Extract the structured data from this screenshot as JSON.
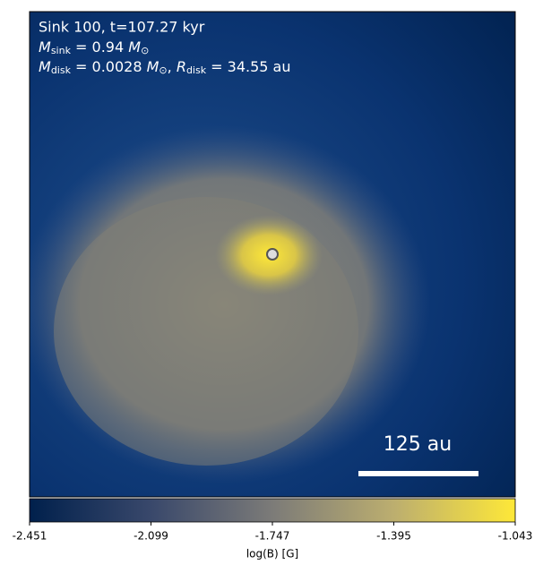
{
  "panel": {
    "annotation": {
      "line1": "Sink 100, t=107.27 kyr",
      "line2": {
        "symbol": "M",
        "subscript": "sink",
        "text": " = 0.94 ",
        "unit": "M",
        "unit_subscript": "⊙"
      },
      "line3": {
        "symbol": "M",
        "subscript": "disk",
        "text": " = 0.0028 ",
        "unit": "M",
        "unit_subscript": "⊙",
        "separator": ", ",
        "symbol2": "R",
        "subscript2": "disk",
        "text2": " = 34.55 au"
      }
    },
    "scale_bar_label": "125 au",
    "colorbar": {
      "ticks": [
        -2.451,
        -2.099,
        -1.747,
        -1.395,
        -1.043
      ],
      "label": "log(B) [G]"
    }
  }
}
